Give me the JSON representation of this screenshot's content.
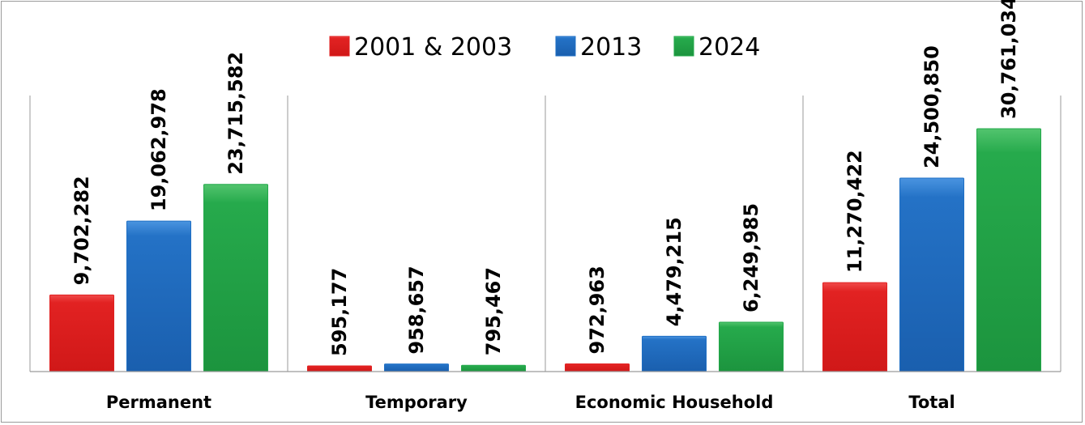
{
  "chart_data": {
    "type": "bar",
    "categories": [
      "Permanent",
      "Temporary",
      "Economic Household",
      "Total"
    ],
    "series": [
      {
        "name": "2001 & 2003",
        "color": "#e02020",
        "values": [
          9702282,
          595177,
          972963,
          11270422
        ],
        "labels": [
          "9,702,282",
          "595,177",
          "972,963",
          "11,270,422"
        ]
      },
      {
        "name": "2013",
        "color": "#1f6fc4",
        "values": [
          19062978,
          958657,
          4479215,
          24500850
        ],
        "labels": [
          "19,062,978",
          "958,657",
          "4,479,215",
          "24,500,850"
        ]
      },
      {
        "name": "2024",
        "color": "#22a84a",
        "values": [
          23715582,
          795467,
          6249985,
          30761034
        ],
        "labels": [
          "23,715,582",
          "795,467",
          "6,249,985",
          "30,761,034"
        ]
      }
    ],
    "ylim": [
      0,
      38000000
    ],
    "grid": false,
    "legend": "top-center"
  }
}
